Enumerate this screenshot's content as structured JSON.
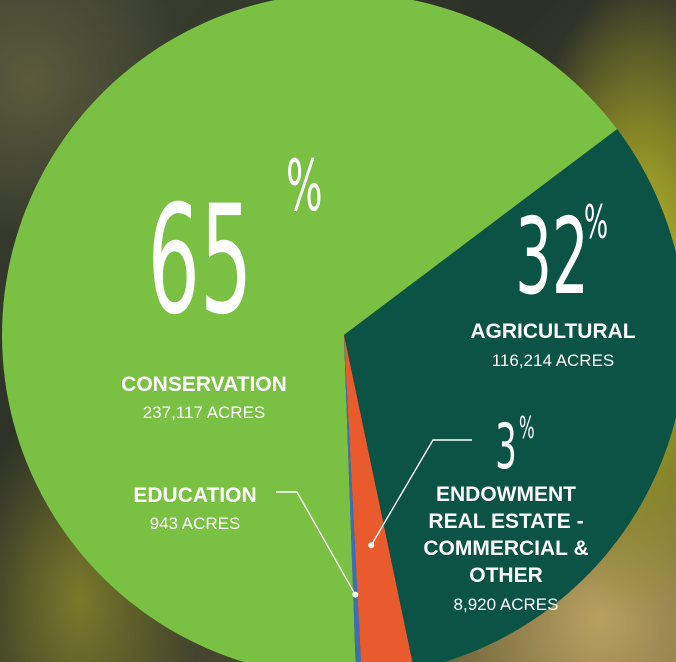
{
  "chart_data": {
    "type": "pie",
    "slices": [
      {
        "category": "CONSERVATION",
        "percent": 65,
        "percent_label": "65",
        "percent_sign": "%",
        "acres_label": "237,117 ACRES",
        "acres": 237117,
        "color": "#7ac143"
      },
      {
        "category": "AGRICULTURAL",
        "percent": 32,
        "percent_label": "32",
        "percent_sign": "%",
        "acres_label": "116,214 ACRES",
        "acres": 116214,
        "color": "#0b5345"
      },
      {
        "category_lines": [
          "ENDOWMENT",
          "REAL ESTATE -",
          "COMMERCIAL &",
          "OTHER"
        ],
        "percent": 3,
        "percent_label": "3",
        "percent_sign": "%",
        "acres_label": "8,920 ACRES",
        "acres": 8920,
        "color": "#e95b2d"
      },
      {
        "category": "EDUCATION",
        "acres_label": "943 ACRES",
        "acres": 943,
        "color": "#3c6fb5"
      }
    ]
  }
}
